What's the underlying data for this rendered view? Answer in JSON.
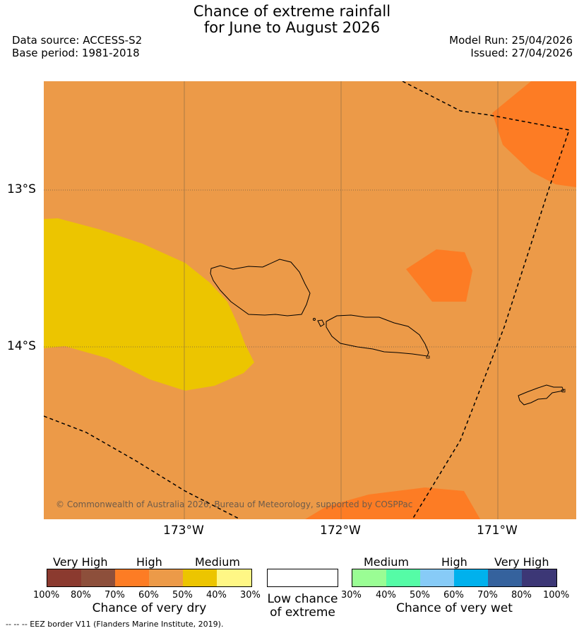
{
  "header": {
    "title_line1": "Chance of extreme rainfall",
    "title_line2": "for June to August 2026",
    "data_source": "Data source: ACCESS-S2",
    "base_period": "Base period: 1981-2018",
    "model_run": "Model Run: 25/04/2026",
    "issued": "Issued: 27/04/2026"
  },
  "map": {
    "background_color": "#ec9a48",
    "lat_labels": [
      "13°S",
      "14°S"
    ],
    "lon_labels": [
      "173°W",
      "172°W",
      "171°W"
    ],
    "copyright": "© Commonwealth of Australia 2026, Bureau of Meteorology, supported by COSPPac",
    "zones": [
      {
        "name": "medium-dry",
        "color": "#ecc500"
      },
      {
        "name": "high-dry-60-70",
        "color": "#fd7c24"
      }
    ]
  },
  "legend": {
    "dry": {
      "groups": [
        "Very High",
        "High",
        "Medium"
      ],
      "colors": [
        "#8b3a2f",
        "#8d4f3b",
        "#fd7c24",
        "#ec9a48",
        "#ecc500",
        "#fff785"
      ],
      "ticks": [
        "100%",
        "80%",
        "70%",
        "60%",
        "50%",
        "40%",
        "30%"
      ],
      "caption": "Chance of very dry"
    },
    "neutral": {
      "caption_line1": "Low chance",
      "caption_line2": "of extreme",
      "color": "#ffffff"
    },
    "wet": {
      "groups": [
        "Medium",
        "High",
        "Very High"
      ],
      "colors": [
        "#9afd94",
        "#55fca6",
        "#87cbf7",
        "#00b1ed",
        "#35629d",
        "#3c3776"
      ],
      "ticks": [
        "30%",
        "40%",
        "50%",
        "60%",
        "70%",
        "80%",
        "100%"
      ],
      "caption": "Chance of very wet"
    }
  },
  "footnote": "--  --  -- EEZ border V11 (Flanders Marine Institute, 2019)."
}
